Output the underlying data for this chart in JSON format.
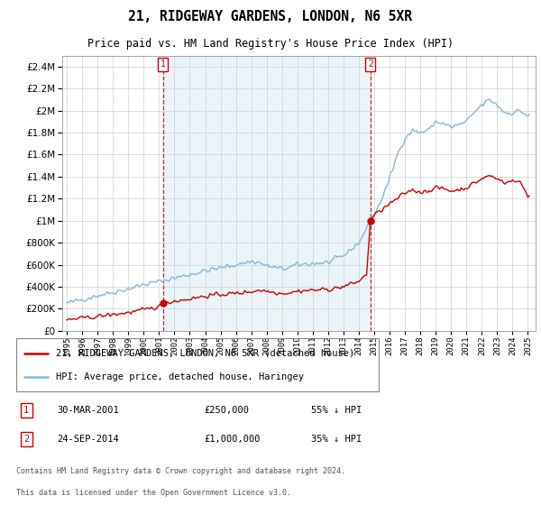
{
  "title": "21, RIDGEWAY GARDENS, LONDON, N6 5XR",
  "subtitle": "Price paid vs. HM Land Registry's House Price Index (HPI)",
  "legend_line1": "21, RIDGEWAY GARDENS, LONDON, N6 5XR (detached house)",
  "legend_line2": "HPI: Average price, detached house, Haringey",
  "footer1": "Contains HM Land Registry data © Crown copyright and database right 2024.",
  "footer2": "This data is licensed under the Open Government Licence v3.0.",
  "annotation1_label": "1",
  "annotation1_date": "30-MAR-2001",
  "annotation1_price": "£250,000",
  "annotation1_hpi": "55% ↓ HPI",
  "annotation2_label": "2",
  "annotation2_date": "24-SEP-2014",
  "annotation2_price": "£1,000,000",
  "annotation2_hpi": "35% ↓ HPI",
  "hpi_color": "#85b8d8",
  "hpi_fill_color": "#ddeef6",
  "price_color": "#cc0000",
  "vline_color": "#cc0000",
  "background_color": "#ffffff",
  "grid_color": "#d0d0d0",
  "ylim": [
    0,
    2500000
  ],
  "yticks": [
    0,
    200000,
    400000,
    600000,
    800000,
    1000000,
    1200000,
    1400000,
    1600000,
    1800000,
    2000000,
    2200000,
    2400000
  ],
  "xlim_start": 1994.7,
  "xlim_end": 2025.5,
  "xticks": [
    1995,
    1996,
    1997,
    1998,
    1999,
    2000,
    2001,
    2002,
    2003,
    2004,
    2005,
    2006,
    2007,
    2008,
    2009,
    2010,
    2011,
    2012,
    2013,
    2014,
    2015,
    2016,
    2017,
    2018,
    2019,
    2020,
    2021,
    2022,
    2023,
    2024,
    2025
  ],
  "sale1_x": 2001.25,
  "sale1_y": 250000,
  "sale2_x": 2014.75,
  "sale2_y": 1000000
}
